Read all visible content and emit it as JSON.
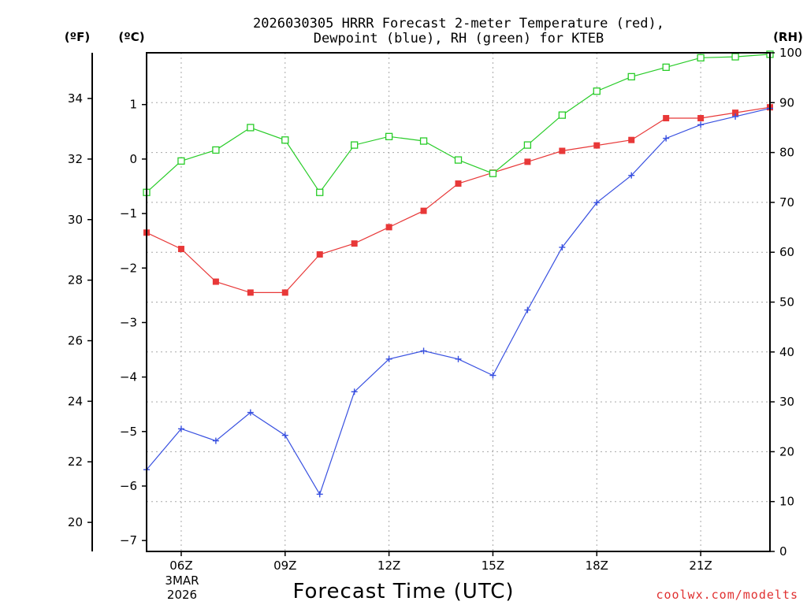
{
  "chart_data": {
    "type": "line",
    "title_lines": [
      "2026030305 HRRR Forecast 2-meter Temperature (red),",
      "Dewpoint (blue), RH (green) for KTEB"
    ],
    "xlabel": "Forecast Time (UTC)",
    "credit": "coolwx.com/modelts",
    "units": {
      "fahrenheit": "(ºF)",
      "celsius": "(ºC)",
      "rh": "(RH)"
    },
    "x": [
      5,
      6,
      7,
      8,
      9,
      10,
      11,
      12,
      13,
      14,
      15,
      16,
      17,
      18,
      19,
      20,
      21,
      22,
      23
    ],
    "xlim": [
      5,
      23
    ],
    "x_ticks": [
      {
        "x": 6,
        "label": "06Z"
      },
      {
        "x": 9,
        "label": "09Z"
      },
      {
        "x": 12,
        "label": "12Z"
      },
      {
        "x": 15,
        "label": "15Z"
      },
      {
        "x": 18,
        "label": "18Z"
      },
      {
        "x": 21,
        "label": "21Z"
      }
    ],
    "date_label": [
      "3MAR",
      "2026"
    ],
    "ylim_c": [
      -7.2,
      1.95
    ],
    "ylim_f": [
      19.04,
      35.51
    ],
    "ylim_rh": [
      0,
      100
    ],
    "c_ticks": [
      1,
      0,
      -1,
      -2,
      -3,
      -4,
      -5,
      -6,
      -7
    ],
    "f_ticks": [
      34,
      32,
      30,
      28,
      26,
      24,
      22,
      20
    ],
    "rh_ticks": [
      100,
      90,
      80,
      70,
      60,
      50,
      40,
      30,
      20,
      10,
      0
    ],
    "series": [
      {
        "name": "Temperature",
        "unit": "C",
        "color": "#e83838",
        "marker": "square-filled",
        "values": [
          -1.35,
          -1.65,
          -2.25,
          -2.45,
          -2.45,
          -1.75,
          -1.55,
          -1.25,
          -0.95,
          -0.45,
          -0.25,
          -0.05,
          0.15,
          0.25,
          0.35,
          0.75,
          0.75,
          0.85,
          0.95
        ]
      },
      {
        "name": "Dewpoint",
        "unit": "C",
        "color": "#3850e0",
        "marker": "plus",
        "values": [
          -5.7,
          -4.95,
          -5.17,
          -4.65,
          -5.07,
          -6.15,
          -4.27,
          -3.67,
          -3.52,
          -3.67,
          -3.97,
          -2.77,
          -1.62,
          -0.8,
          -0.3,
          0.38,
          0.63,
          0.78,
          0.93
        ]
      },
      {
        "name": "RH",
        "unit": "%",
        "color": "#28cc28",
        "marker": "square-open",
        "values": [
          72,
          78.3,
          80.5,
          85,
          82.5,
          72,
          81.5,
          83.2,
          82.3,
          78.5,
          75.8,
          81.5,
          87.5,
          92.3,
          95.2,
          97.1,
          99,
          99.2,
          99.7
        ]
      }
    ]
  }
}
